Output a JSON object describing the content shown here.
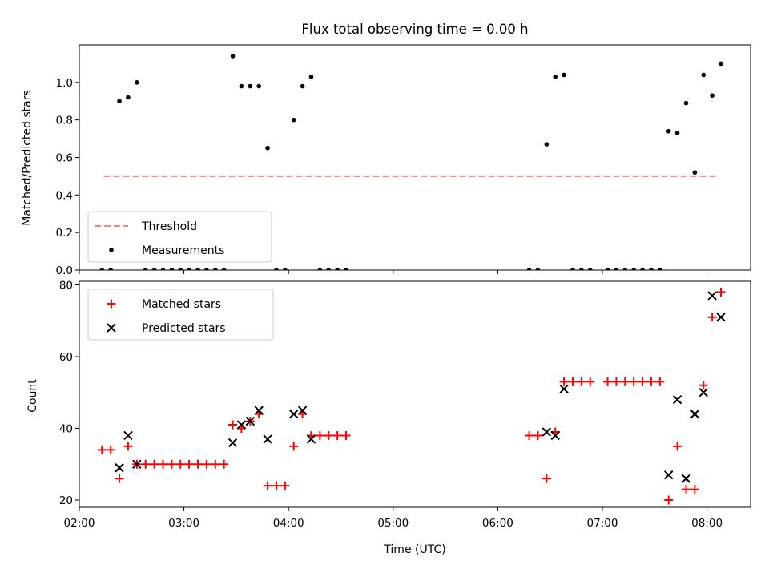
{
  "chart_data": [
    {
      "type": "scatter",
      "title": "Flux total observing time = 0.00 h",
      "ylabel": "Matched/Predicted stars",
      "xlabel": "",
      "xlim": [
        "02:00",
        "08:25"
      ],
      "ylim": [
        0,
        1.2
      ],
      "yticks": [
        0.0,
        0.2,
        0.4,
        0.6,
        0.8,
        1.0
      ],
      "yticklabels": [
        "0.0",
        "0.2",
        "0.4",
        "0.6",
        "0.8",
        "1.0"
      ],
      "legend_position": "lower-left",
      "series": [
        {
          "name": "Threshold",
          "kind": "dashed-line",
          "color": "#ff8080",
          "points": [
            [
              "02:14",
              0.5
            ],
            [
              "08:06",
              0.5
            ]
          ]
        },
        {
          "name": "Measurements",
          "kind": "dot",
          "color": "#000000",
          "points": [
            [
              "02:13",
              0.0
            ],
            [
              "02:18",
              0.0
            ],
            [
              "02:23",
              0.9
            ],
            [
              "02:28",
              0.92
            ],
            [
              "02:33",
              1.0
            ],
            [
              "02:38",
              0.0
            ],
            [
              "02:43",
              0.0
            ],
            [
              "02:48",
              0.0
            ],
            [
              "02:53",
              0.0
            ],
            [
              "02:58",
              0.0
            ],
            [
              "03:03",
              0.0
            ],
            [
              "03:08",
              0.0
            ],
            [
              "03:13",
              0.0
            ],
            [
              "03:18",
              0.0
            ],
            [
              "03:23",
              0.0
            ],
            [
              "03:28",
              1.14
            ],
            [
              "03:33",
              0.98
            ],
            [
              "03:38",
              0.98
            ],
            [
              "03:43",
              0.98
            ],
            [
              "03:48",
              0.65
            ],
            [
              "03:53",
              0.0
            ],
            [
              "03:58",
              0.0
            ],
            [
              "04:03",
              0.8
            ],
            [
              "04:08",
              0.98
            ],
            [
              "04:13",
              1.03
            ],
            [
              "04:18",
              0.0
            ],
            [
              "04:23",
              0.0
            ],
            [
              "04:28",
              0.0
            ],
            [
              "04:33",
              0.0
            ],
            [
              "06:18",
              0.0
            ],
            [
              "06:23",
              0.0
            ],
            [
              "06:28",
              0.67
            ],
            [
              "06:33",
              1.03
            ],
            [
              "06:38",
              1.04
            ],
            [
              "06:43",
              0.0
            ],
            [
              "06:48",
              0.0
            ],
            [
              "06:53",
              0.0
            ],
            [
              "07:03",
              0.0
            ],
            [
              "07:08",
              0.0
            ],
            [
              "07:13",
              0.0
            ],
            [
              "07:18",
              0.0
            ],
            [
              "07:23",
              0.0
            ],
            [
              "07:28",
              0.0
            ],
            [
              "07:33",
              0.0
            ],
            [
              "07:38",
              0.74
            ],
            [
              "07:43",
              0.73
            ],
            [
              "07:48",
              0.89
            ],
            [
              "07:53",
              0.52
            ],
            [
              "07:58",
              1.04
            ],
            [
              "08:03",
              0.93
            ],
            [
              "08:08",
              1.1
            ]
          ]
        }
      ]
    },
    {
      "type": "scatter",
      "title": "",
      "ylabel": "Count",
      "xlabel": "Time (UTC)",
      "xlim": [
        "02:00",
        "08:25"
      ],
      "ylim": [
        18,
        81
      ],
      "yticks": [
        20,
        40,
        60,
        80
      ],
      "yticklabels": [
        "20",
        "40",
        "60",
        "80"
      ],
      "xticks": [
        "02:00",
        "03:00",
        "04:00",
        "05:00",
        "06:00",
        "07:00",
        "08:00"
      ],
      "xticklabels": [
        "02:00",
        "03:00",
        "04:00",
        "05:00",
        "06:00",
        "07:00",
        "08:00"
      ],
      "legend_position": "upper-left",
      "series": [
        {
          "name": "Matched stars",
          "kind": "plus",
          "color": "#ff0000",
          "points": [
            [
              "02:13",
              34
            ],
            [
              "02:18",
              34
            ],
            [
              "02:23",
              26
            ],
            [
              "02:28",
              35
            ],
            [
              "02:33",
              30
            ],
            [
              "02:38",
              30
            ],
            [
              "02:43",
              30
            ],
            [
              "02:48",
              30
            ],
            [
              "02:53",
              30
            ],
            [
              "02:58",
              30
            ],
            [
              "03:03",
              30
            ],
            [
              "03:08",
              30
            ],
            [
              "03:13",
              30
            ],
            [
              "03:18",
              30
            ],
            [
              "03:23",
              30
            ],
            [
              "03:28",
              41
            ],
            [
              "03:33",
              40
            ],
            [
              "03:38",
              42
            ],
            [
              "03:43",
              44
            ],
            [
              "03:48",
              24
            ],
            [
              "03:53",
              24
            ],
            [
              "03:58",
              24
            ],
            [
              "04:03",
              35
            ],
            [
              "04:08",
              44
            ],
            [
              "04:13",
              38
            ],
            [
              "04:18",
              38
            ],
            [
              "04:23",
              38
            ],
            [
              "04:28",
              38
            ],
            [
              "04:33",
              38
            ],
            [
              "06:18",
              38
            ],
            [
              "06:23",
              38
            ],
            [
              "06:28",
              26
            ],
            [
              "06:33",
              39
            ],
            [
              "06:38",
              53
            ],
            [
              "06:43",
              53
            ],
            [
              "06:48",
              53
            ],
            [
              "06:53",
              53
            ],
            [
              "07:03",
              53
            ],
            [
              "07:08",
              53
            ],
            [
              "07:13",
              53
            ],
            [
              "07:18",
              53
            ],
            [
              "07:23",
              53
            ],
            [
              "07:28",
              53
            ],
            [
              "07:33",
              53
            ],
            [
              "07:38",
              20
            ],
            [
              "07:43",
              35
            ],
            [
              "07:48",
              23
            ],
            [
              "07:53",
              23
            ],
            [
              "07:58",
              52
            ],
            [
              "08:03",
              71
            ],
            [
              "08:08",
              78
            ]
          ]
        },
        {
          "name": "Predicted stars",
          "kind": "x",
          "color": "#000000",
          "points": [
            [
              "02:23",
              29
            ],
            [
              "02:28",
              38
            ],
            [
              "02:33",
              30
            ],
            [
              "03:28",
              36
            ],
            [
              "03:33",
              41
            ],
            [
              "03:38",
              42
            ],
            [
              "03:43",
              45
            ],
            [
              "03:48",
              37
            ],
            [
              "04:03",
              44
            ],
            [
              "04:08",
              45
            ],
            [
              "04:13",
              37
            ],
            [
              "06:28",
              39
            ],
            [
              "06:33",
              38
            ],
            [
              "06:38",
              51
            ],
            [
              "07:38",
              27
            ],
            [
              "07:43",
              48
            ],
            [
              "07:48",
              26
            ],
            [
              "07:53",
              44
            ],
            [
              "07:58",
              50
            ],
            [
              "08:03",
              77
            ],
            [
              "08:08",
              71
            ]
          ]
        }
      ]
    }
  ]
}
